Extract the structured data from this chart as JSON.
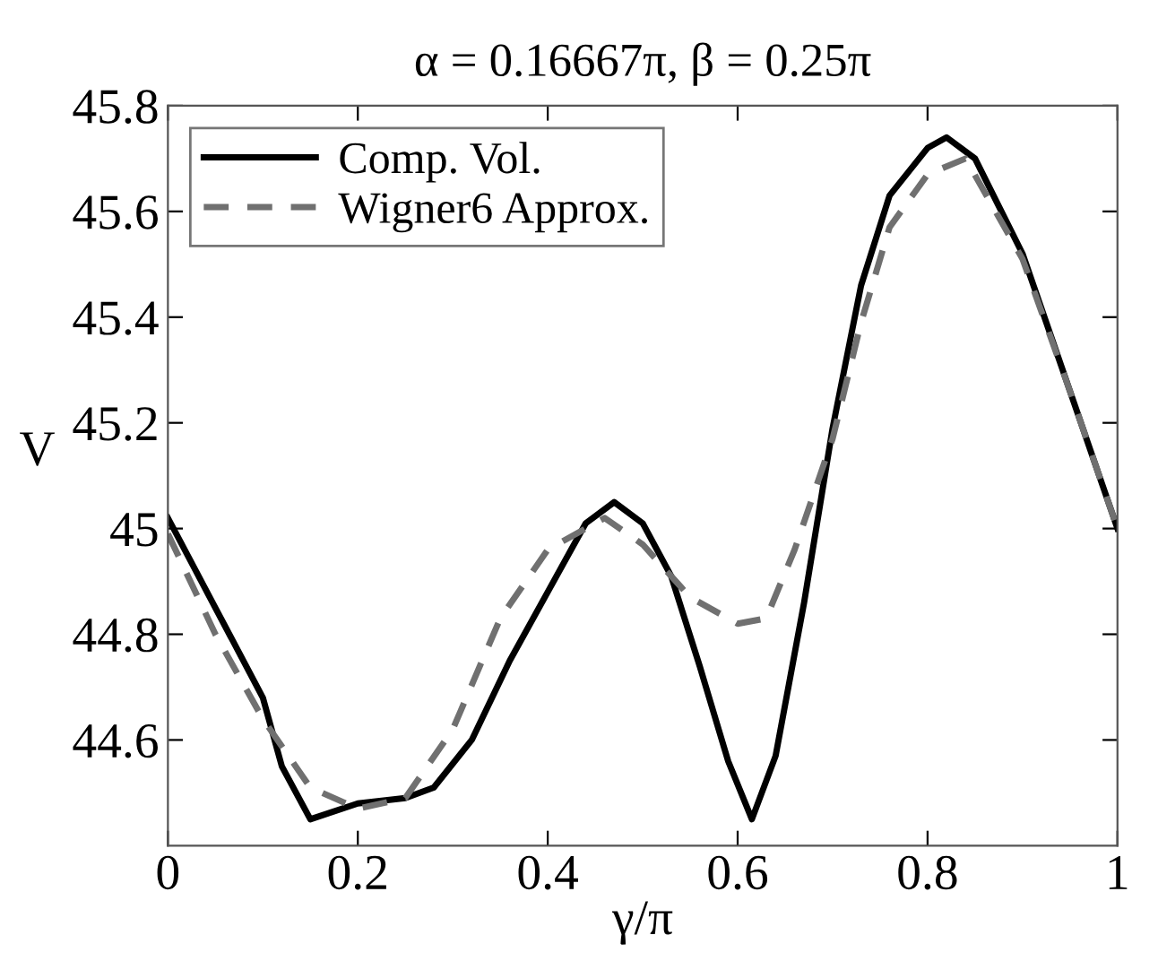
{
  "chart_data": {
    "type": "line",
    "title": "α = 0.16667π, β = 0.25π",
    "xlabel": "γ/π",
    "ylabel": "V",
    "xlim": [
      0,
      1
    ],
    "xticks": [
      0,
      0.2,
      0.4,
      0.6,
      0.8,
      1
    ],
    "ylim": [
      44.4,
      45.8
    ],
    "yticks": [
      44.6,
      44.8,
      45,
      45.2,
      45.4,
      45.6,
      45.8
    ],
    "grid": false,
    "legend": "top left",
    "series": [
      {
        "name": "Comp. Vol.",
        "color": "#000000",
        "line_style": "solid",
        "x": [
          0,
          0.05,
          0.1,
          0.12,
          0.15,
          0.2,
          0.25,
          0.28,
          0.32,
          0.36,
          0.4,
          0.44,
          0.47,
          0.5,
          0.53,
          0.56,
          0.59,
          0.615,
          0.64,
          0.67,
          0.7,
          0.73,
          0.76,
          0.8,
          0.82,
          0.85,
          0.9,
          0.95,
          1
        ],
        "values": [
          45.02,
          44.85,
          44.68,
          44.55,
          44.45,
          44.48,
          44.49,
          44.51,
          44.6,
          44.75,
          44.88,
          45.01,
          45.05,
          45.01,
          44.91,
          44.74,
          44.56,
          44.45,
          44.57,
          44.86,
          45.19,
          45.46,
          45.63,
          45.72,
          45.74,
          45.7,
          45.52,
          45.26,
          45.0
        ]
      },
      {
        "name": "Wigner6 Approx.",
        "color": "#707070",
        "line_style": "dashed",
        "x": [
          0,
          0.05,
          0.1,
          0.15,
          0.2,
          0.25,
          0.3,
          0.35,
          0.4,
          0.46,
          0.5,
          0.55,
          0.6,
          0.63,
          0.66,
          0.7,
          0.73,
          0.76,
          0.8,
          0.84,
          0.9,
          0.95,
          1
        ],
        "values": [
          44.99,
          44.8,
          44.64,
          44.51,
          44.47,
          44.49,
          44.62,
          44.83,
          44.96,
          45.02,
          44.97,
          44.87,
          44.82,
          44.83,
          44.96,
          45.17,
          45.39,
          45.57,
          45.67,
          45.7,
          45.51,
          45.26,
          45.0
        ]
      }
    ]
  }
}
